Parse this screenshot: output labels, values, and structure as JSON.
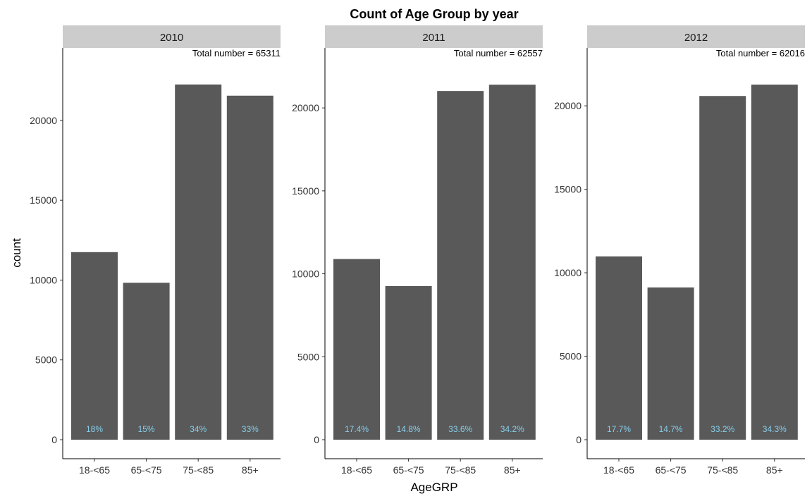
{
  "chart_data": {
    "type": "bar",
    "title": "Count of Age Group by year",
    "xlabel": "AgeGRP",
    "ylabel": "count",
    "categories": [
      "18-<65",
      "65-<75",
      "75-<85",
      "85+"
    ],
    "bar_color": "#595959",
    "strip_color": "#cccccc",
    "percent_label_color": "#87ceeb",
    "panels": [
      {
        "facet": "2010",
        "total_label": "Total number = 65311",
        "values": [
          11750,
          9830,
          22250,
          21550
        ],
        "percent_labels": [
          "18%",
          "15%",
          "34%",
          "33%"
        ],
        "ylim": [
          0,
          23350
        ],
        "yticks": [
          0,
          5000,
          10000,
          15000,
          20000
        ],
        "ytick_labels": [
          "0",
          "5000",
          "10000",
          "15000",
          "20000"
        ]
      },
      {
        "facet": "2011",
        "total_label": "Total number = 62557",
        "values": [
          10890,
          9260,
          21020,
          21400
        ],
        "percent_labels": [
          "17.4%",
          "14.8%",
          "33.6%",
          "34.2%"
        ],
        "ylim": [
          0,
          22470
        ],
        "yticks": [
          0,
          5000,
          10000,
          15000,
          20000
        ],
        "ytick_labels": [
          "0",
          "5000",
          "10000",
          "15000",
          "20000"
        ]
      },
      {
        "facet": "2012",
        "total_label": "Total number = 62016",
        "values": [
          10980,
          9120,
          20590,
          21270
        ],
        "percent_labels": [
          "17.7%",
          "14.7%",
          "33.2%",
          "34.3%"
        ],
        "ylim": [
          0,
          22330
        ],
        "yticks": [
          0,
          5000,
          10000,
          15000,
          20000
        ],
        "ytick_labels": [
          "0",
          "5000",
          "10000",
          "15000",
          "20000"
        ]
      }
    ]
  }
}
